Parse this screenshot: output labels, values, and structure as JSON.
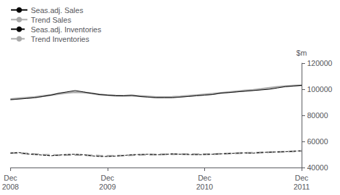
{
  "chart_data": {
    "type": "line",
    "ylabel": "$m",
    "categories": [
      "Dec\n2008",
      null,
      null,
      null,
      null,
      null,
      null,
      null,
      null,
      null,
      null,
      null,
      "Dec\n2009",
      null,
      null,
      null,
      null,
      null,
      null,
      null,
      null,
      null,
      null,
      null,
      "Dec\n2010",
      null,
      null,
      null,
      null,
      null,
      null,
      null,
      null,
      null,
      null,
      null,
      "Dec\n2011"
    ],
    "series": [
      {
        "name": "Seas.adj. Sales",
        "color": "#000000",
        "line_style": "solid",
        "values": [
          92000,
          92500,
          93000,
          93500,
          94500,
          95500,
          97000,
          98000,
          99000,
          98000,
          97000,
          96000,
          95500,
          95000,
          95000,
          95500,
          94500,
          94000,
          93500,
          93500,
          93500,
          94000,
          94500,
          95000,
          95500,
          96000,
          97000,
          97500,
          98000,
          98500,
          99000,
          99500,
          100000,
          101000,
          102000,
          102500,
          103000
        ]
      },
      {
        "name": "Trend Sales",
        "color": "#aaaaaa",
        "line_style": "solid",
        "values": [
          92500,
          93000,
          93500,
          94000,
          94800,
          95600,
          96500,
          97200,
          97800,
          97500,
          96800,
          96000,
          95500,
          95200,
          95000,
          95000,
          94800,
          94500,
          94000,
          94000,
          94200,
          94500,
          95000,
          95500,
          96000,
          96500,
          97200,
          97800,
          98400,
          99000,
          99500,
          100200,
          101000,
          101800,
          102400,
          102800,
          103000
        ]
      },
      {
        "name": "Seas.adj. Inventories",
        "color": "#000000",
        "line_style": "dashed",
        "values": [
          51000,
          51500,
          50500,
          50000,
          49500,
          49000,
          49500,
          50000,
          50200,
          49800,
          49000,
          48500,
          48500,
          48800,
          49200,
          49800,
          50000,
          50200,
          49800,
          50000,
          50500,
          50200,
          50000,
          49800,
          50000,
          50200,
          50500,
          50800,
          51000,
          51200,
          51000,
          51500,
          51800,
          52000,
          52200,
          52500,
          52800
        ]
      },
      {
        "name": "Trend Inventories",
        "color": "#aaaaaa",
        "line_style": "dashed",
        "values": [
          51200,
          51000,
          50700,
          50300,
          49900,
          49600,
          49500,
          49600,
          49700,
          49600,
          49300,
          49000,
          48900,
          49000,
          49200,
          49500,
          49700,
          49900,
          50000,
          50100,
          50200,
          50300,
          50300,
          50200,
          50200,
          50300,
          50500,
          50700,
          51000,
          51200,
          51300,
          51500,
          51700,
          51900,
          52100,
          52400,
          52700
        ]
      }
    ],
    "ylim": [
      40000,
      120000
    ],
    "yticks": [
      40000,
      60000,
      80000,
      100000,
      120000
    ],
    "grid": false,
    "legend": "upper left"
  }
}
